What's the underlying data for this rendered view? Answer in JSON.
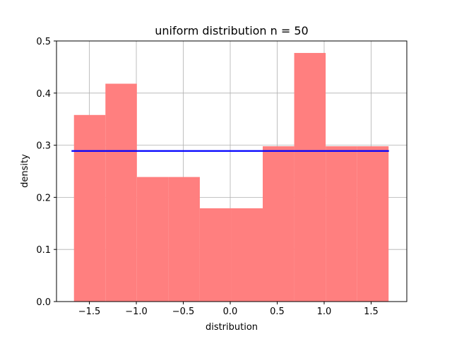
{
  "chart_data": {
    "type": "bar",
    "title": "uniform distribution n = 50",
    "xlabel": "distribution",
    "ylabel": "density",
    "xlim": [
      -1.85,
      1.88
    ],
    "ylim": [
      0,
      0.5
    ],
    "grid": true,
    "xticks": [
      -1.5,
      -1.0,
      -0.5,
      0.0,
      0.5,
      1.0,
      1.5
    ],
    "xtick_labels": [
      "−1.5",
      "−1.0",
      "−0.5",
      "0.0",
      "0.5",
      "1.0",
      "1.5"
    ],
    "yticks": [
      0.0,
      0.1,
      0.2,
      0.3,
      0.4,
      0.5
    ],
    "ytick_labels": [
      "0.0",
      "0.1",
      "0.2",
      "0.3",
      "0.4",
      "0.5"
    ],
    "histogram": {
      "color": "#ff7f7f",
      "bin_edges": [
        -1.664,
        -1.329,
        -0.994,
        -0.659,
        -0.324,
        0.011,
        0.346,
        0.681,
        1.016,
        1.351,
        1.686
      ],
      "densities": [
        0.358,
        0.418,
        0.239,
        0.239,
        0.179,
        0.179,
        0.298,
        0.477,
        0.298,
        0.298
      ]
    },
    "reference_line": {
      "color": "#0000ff",
      "x": [
        -1.69,
        1.69
      ],
      "y": [
        0.289,
        0.289
      ]
    }
  }
}
